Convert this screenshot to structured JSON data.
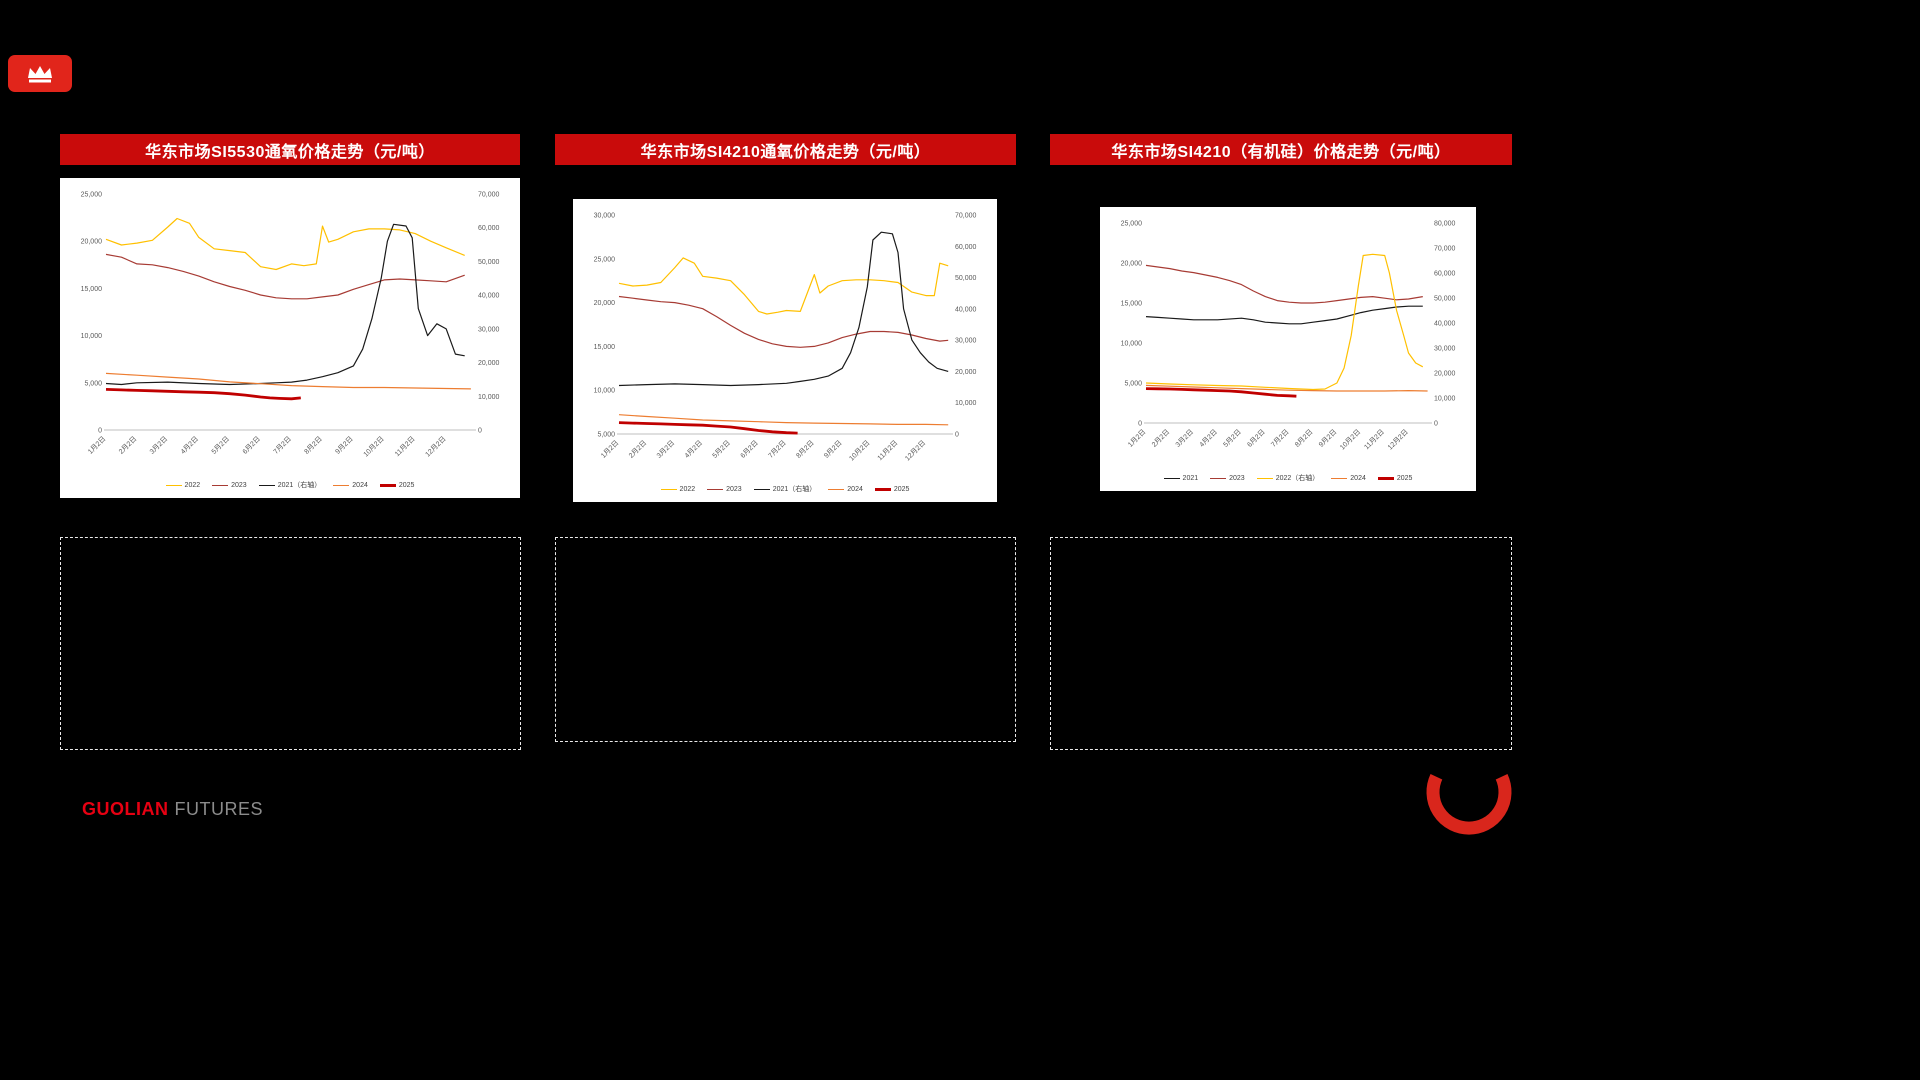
{
  "theme": {
    "background": "#000000",
    "header_bar_red": "#C90B0B",
    "badge_red": "#E1251B",
    "brand_red": "#E60012",
    "brand_gray": "#8C8C8C",
    "panel_white": "#FFFFFF",
    "swoosh_red": "#D9261C"
  },
  "footer": {
    "brand_red": "GUOLIAN",
    "brand_gray": "FUTURES"
  },
  "notes": [
    "",
    "",
    ""
  ],
  "chart_data": [
    {
      "type": "line",
      "title": "华东市场SI5530通氧价格走势（元/吨）",
      "grid": false,
      "legend_position": "bottom",
      "x_axis": {
        "min": 0,
        "max": 11.9,
        "labels": [
          "1月2日",
          "2月2日",
          "3月2日",
          "4月2日",
          "5月2日",
          "6月2日",
          "7月2日",
          "8月2日",
          "9月2日",
          "10月2日",
          "11月2日",
          "12月2日"
        ]
      },
      "left_axis": {
        "min": 0,
        "max": 25000,
        "step": 5000
      },
      "right_axis": {
        "min": 0,
        "max": 70000,
        "step": 10000
      },
      "series": [
        {
          "name": "2022",
          "color": "#FFC000",
          "axis": "left",
          "thick": false,
          "x": [
            0,
            0.5,
            1,
            1.5,
            2,
            2.3,
            2.7,
            3,
            3.5,
            4,
            4.5,
            5,
            5.5,
            6,
            6.4,
            6.8,
            7,
            7.2,
            7.5,
            8,
            8.5,
            9,
            9.5,
            10,
            10.5,
            11,
            11.6
          ],
          "values": [
            20200,
            19600,
            19800,
            20100,
            21500,
            22400,
            21900,
            20400,
            19200,
            19000,
            18800,
            17300,
            17000,
            17600,
            17400,
            17600,
            21600,
            19900,
            20200,
            21000,
            21300,
            21300,
            21200,
            20800,
            20000,
            19300,
            18500
          ]
        },
        {
          "name": "2023",
          "color": "#A73B34",
          "axis": "left",
          "thick": false,
          "x": [
            0,
            0.5,
            1,
            1.5,
            2,
            2.5,
            3,
            3.5,
            4,
            4.5,
            5,
            5.5,
            6,
            6.5,
            7,
            7.5,
            8,
            8.5,
            9,
            9.5,
            10,
            10.5,
            11,
            11.6
          ],
          "values": [
            18600,
            18300,
            17600,
            17500,
            17200,
            16800,
            16300,
            15700,
            15200,
            14800,
            14300,
            14000,
            13900,
            13900,
            14100,
            14300,
            14900,
            15400,
            15900,
            16000,
            15900,
            15800,
            15700,
            16400
          ]
        },
        {
          "name": "2021（右轴）",
          "color": "#1A1A1A",
          "axis": "right",
          "thick": false,
          "x": [
            0,
            0.5,
            1,
            2,
            3,
            4,
            5,
            5.5,
            6,
            6.5,
            7,
            7.5,
            8,
            8.3,
            8.6,
            8.9,
            9.1,
            9.3,
            9.7,
            9.9,
            10.1,
            10.4,
            10.7,
            11,
            11.3,
            11.6
          ],
          "values": [
            13800,
            13500,
            14000,
            14200,
            13800,
            13500,
            13800,
            14000,
            14200,
            14800,
            15800,
            17000,
            19000,
            24000,
            33000,
            45000,
            56000,
            61000,
            60500,
            57000,
            36000,
            28000,
            31500,
            30000,
            22500,
            22000
          ]
        },
        {
          "name": "2024",
          "color": "#ED7D31",
          "axis": "left",
          "thick": false,
          "x": [
            0,
            1,
            2,
            3,
            4,
            5,
            6,
            7,
            8,
            9,
            10,
            11,
            11.8
          ],
          "values": [
            6000,
            5800,
            5600,
            5400,
            5100,
            4900,
            4700,
            4600,
            4500,
            4500,
            4450,
            4400,
            4350
          ]
        },
        {
          "name": "2025",
          "color": "#C00000",
          "axis": "left",
          "thick": true,
          "x": [
            0,
            0.5,
            1,
            1.5,
            2,
            2.5,
            3,
            3.5,
            4,
            4.5,
            5,
            5.3,
            5.6,
            6,
            6.3
          ],
          "values": [
            4300,
            4250,
            4200,
            4150,
            4100,
            4050,
            4000,
            3950,
            3850,
            3700,
            3500,
            3400,
            3350,
            3300,
            3400
          ]
        }
      ]
    },
    {
      "type": "line",
      "title": "华东市场SI4210通氧价格走势（元/吨）",
      "grid": false,
      "legend_position": "bottom",
      "x_axis": {
        "min": 0,
        "max": 11.9,
        "labels": [
          "1月2日",
          "2月2日",
          "3月2日",
          "4月2日",
          "5月2日",
          "6月2日",
          "7月2日",
          "8月2日",
          "9月2日",
          "10月2日",
          "11月2日",
          "12月2日"
        ]
      },
      "left_axis": {
        "min": 5000,
        "max": 30000,
        "step": 5000
      },
      "right_axis": {
        "min": 0,
        "max": 70000,
        "step": 10000
      },
      "series": [
        {
          "name": "2022",
          "color": "#FFC000",
          "axis": "left",
          "thick": false,
          "x": [
            0,
            0.5,
            1,
            1.5,
            2,
            2.3,
            2.7,
            3,
            3.5,
            4,
            4.5,
            5,
            5.3,
            5.7,
            6,
            6.5,
            7,
            7.2,
            7.5,
            8,
            8.5,
            9,
            9.5,
            10,
            10.5,
            11,
            11.3,
            11.5,
            11.8
          ],
          "values": [
            22200,
            21900,
            22000,
            22300,
            24000,
            25100,
            24500,
            23000,
            22800,
            22500,
            20900,
            19000,
            18700,
            18900,
            19100,
            19000,
            23200,
            21100,
            21900,
            22500,
            22600,
            22600,
            22500,
            22300,
            21200,
            20800,
            20800,
            24500,
            24200
          ]
        },
        {
          "name": "2023",
          "color": "#A73B34",
          "axis": "left",
          "thick": false,
          "x": [
            0,
            0.5,
            1,
            1.5,
            2,
            2.5,
            3,
            3.5,
            4,
            4.5,
            5,
            5.5,
            6,
            6.5,
            7,
            7.5,
            8,
            8.5,
            9,
            9.5,
            10,
            10.5,
            11,
            11.5,
            11.8
          ],
          "values": [
            20700,
            20500,
            20300,
            20100,
            20000,
            19700,
            19300,
            18400,
            17400,
            16500,
            15800,
            15300,
            15000,
            14900,
            15000,
            15400,
            16000,
            16400,
            16700,
            16700,
            16600,
            16300,
            15900,
            15600,
            15700
          ]
        },
        {
          "name": "2021（右轴）",
          "color": "#1A1A1A",
          "axis": "right",
          "thick": false,
          "x": [
            0,
            1,
            2,
            3,
            4,
            5,
            6,
            6.5,
            7,
            7.5,
            8,
            8.3,
            8.6,
            8.9,
            9.1,
            9.4,
            9.8,
            10,
            10.2,
            10.5,
            10.8,
            11.1,
            11.4,
            11.8
          ],
          "values": [
            15500,
            15800,
            16000,
            15800,
            15500,
            15800,
            16200,
            16800,
            17500,
            18500,
            21000,
            26000,
            34000,
            47000,
            62000,
            64500,
            64000,
            58000,
            40000,
            30000,
            26000,
            23000,
            21000,
            20000
          ]
        },
        {
          "name": "2024",
          "color": "#ED7D31",
          "axis": "left",
          "thick": false,
          "x": [
            0,
            1,
            2,
            3,
            4,
            5,
            6,
            7,
            8,
            9,
            10,
            11,
            11.8
          ],
          "values": [
            7200,
            7000,
            6800,
            6600,
            6500,
            6400,
            6300,
            6250,
            6200,
            6150,
            6100,
            6100,
            6050
          ]
        },
        {
          "name": "2025",
          "color": "#C00000",
          "axis": "left",
          "thick": true,
          "x": [
            0,
            0.5,
            1,
            1.5,
            2,
            2.5,
            3,
            3.5,
            4,
            4.5,
            5,
            5.5,
            6,
            6.4
          ],
          "values": [
            6300,
            6250,
            6200,
            6150,
            6100,
            6050,
            6000,
            5900,
            5800,
            5600,
            5400,
            5250,
            5150,
            5100
          ]
        }
      ]
    },
    {
      "type": "line",
      "title": "华东市场SI4210（有机硅）价格走势（元/吨）",
      "grid": false,
      "legend_position": "bottom",
      "x_axis": {
        "min": 0,
        "max": 11.9,
        "labels": [
          "1月2日",
          "2月2日",
          "3月2日",
          "4月2日",
          "5月2日",
          "6月2日",
          "7月2日",
          "8月2日",
          "9月2日",
          "10月2日",
          "11月2日",
          "12月2日"
        ]
      },
      "left_axis": {
        "min": 0,
        "max": 25000,
        "step": 5000
      },
      "right_axis": {
        "min": 0,
        "max": 80000,
        "step": 10000
      },
      "series": [
        {
          "name": "2021",
          "color": "#1A1A1A",
          "axis": "left",
          "thick": false,
          "x": [
            0,
            0.5,
            1,
            1.5,
            2,
            3,
            4,
            4.5,
            5,
            5.5,
            6,
            6.5,
            7,
            7.5,
            8,
            8.5,
            9,
            9.5,
            10,
            10.5,
            11,
            11.6
          ],
          "values": [
            13300,
            13200,
            13100,
            13000,
            12900,
            12900,
            13100,
            12900,
            12600,
            12500,
            12400,
            12400,
            12600,
            12800,
            13000,
            13400,
            13800,
            14100,
            14300,
            14500,
            14600,
            14600
          ]
        },
        {
          "name": "2023",
          "color": "#A73B34",
          "axis": "left",
          "thick": false,
          "x": [
            0,
            0.5,
            1,
            1.5,
            2,
            2.5,
            3,
            3.5,
            4,
            4.5,
            5,
            5.5,
            6,
            6.5,
            7,
            7.5,
            8,
            8.5,
            9,
            9.5,
            10,
            10.5,
            11,
            11.6
          ],
          "values": [
            19700,
            19500,
            19300,
            19000,
            18800,
            18500,
            18200,
            17800,
            17300,
            16500,
            15800,
            15300,
            15100,
            15000,
            15000,
            15100,
            15300,
            15500,
            15700,
            15800,
            15600,
            15400,
            15500,
            15800
          ]
        },
        {
          "name": "2022（右轴）",
          "color": "#FFC000",
          "axis": "right",
          "thick": false,
          "x": [
            0,
            0.5,
            1,
            2,
            3,
            4,
            5,
            6,
            7,
            7.5,
            8,
            8.3,
            8.6,
            8.9,
            9.1,
            9.5,
            10,
            10.2,
            10.5,
            10.8,
            11,
            11.3,
            11.6
          ],
          "values": [
            16000,
            15800,
            15600,
            15300,
            15000,
            14800,
            14300,
            13800,
            13400,
            13600,
            16000,
            22000,
            35000,
            55000,
            67000,
            67500,
            67000,
            60000,
            45000,
            35000,
            28000,
            24000,
            22500
          ]
        },
        {
          "name": "2024",
          "color": "#ED7D31",
          "axis": "left",
          "thick": false,
          "x": [
            0,
            1,
            2,
            3,
            4,
            5,
            6,
            7,
            8,
            9,
            10,
            11,
            11.8
          ],
          "values": [
            4700,
            4600,
            4500,
            4400,
            4300,
            4200,
            4100,
            4050,
            4000,
            4000,
            4000,
            4050,
            4000
          ]
        },
        {
          "name": "2025",
          "color": "#C00000",
          "axis": "left",
          "thick": true,
          "x": [
            0,
            0.5,
            1,
            1.5,
            2,
            2.5,
            3,
            3.5,
            4,
            4.5,
            5,
            5.5,
            6,
            6.3
          ],
          "values": [
            4300,
            4280,
            4250,
            4200,
            4150,
            4100,
            4050,
            4000,
            3900,
            3750,
            3600,
            3450,
            3400,
            3350
          ]
        }
      ]
    }
  ]
}
